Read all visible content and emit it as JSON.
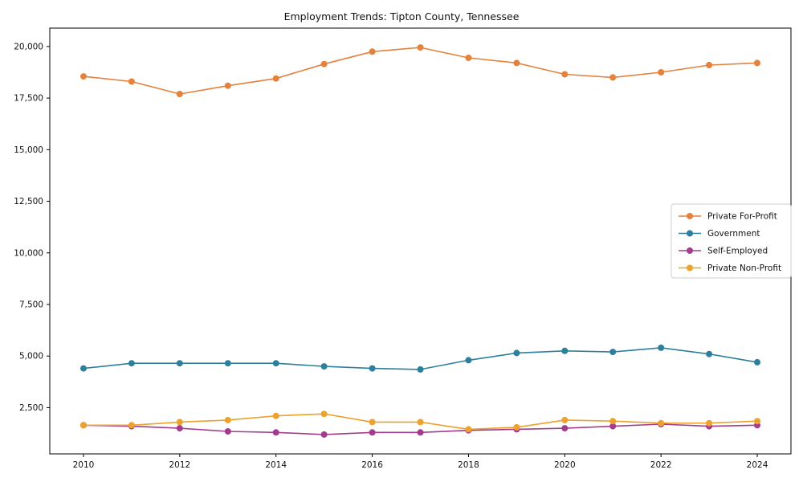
{
  "chart_data": {
    "type": "line",
    "title": "Employment Trends: Tipton County, Tennessee",
    "xlabel": "",
    "ylabel": "",
    "x": [
      2010,
      2011,
      2012,
      2013,
      2014,
      2015,
      2016,
      2017,
      2018,
      2019,
      2020,
      2021,
      2022,
      2023,
      2024
    ],
    "series": [
      {
        "name": "Private For-Profit",
        "color": "#e4813c",
        "values": [
          18550,
          18300,
          17700,
          18100,
          18450,
          19150,
          19750,
          19950,
          19450,
          19200,
          18650,
          18500,
          18750,
          19100,
          19200
        ]
      },
      {
        "name": "Government",
        "color": "#2e7f9c",
        "values": [
          4400,
          4650,
          4650,
          4650,
          4650,
          4500,
          4400,
          4350,
          4800,
          5150,
          5250,
          5200,
          5400,
          5100,
          4700
        ]
      },
      {
        "name": "Self-Employed",
        "color": "#a23d8e",
        "values": [
          1650,
          1600,
          1500,
          1350,
          1300,
          1200,
          1300,
          1300,
          1400,
          1450,
          1500,
          1600,
          1700,
          1600,
          1650
        ]
      },
      {
        "name": "Private Non-Profit",
        "color": "#eba22e",
        "values": [
          1650,
          1650,
          1800,
          1900,
          2100,
          2200,
          1800,
          1800,
          1450,
          1550,
          1900,
          1850,
          1750,
          1750,
          1850
        ]
      }
    ],
    "xlim": [
      2009.3,
      2024.7
    ],
    "ylim": [
      260,
      20890
    ],
    "xticks": [
      2010,
      2012,
      2014,
      2016,
      2018,
      2020,
      2022,
      2024
    ],
    "yticks": [
      2500,
      5000,
      7500,
      10000,
      12500,
      15000,
      17500,
      20000
    ],
    "grid": false,
    "marker": "o",
    "legend": {
      "position": "center right",
      "entries": [
        "Private For-Profit",
        "Government",
        "Self-Employed",
        "Private Non-Profit"
      ]
    }
  }
}
